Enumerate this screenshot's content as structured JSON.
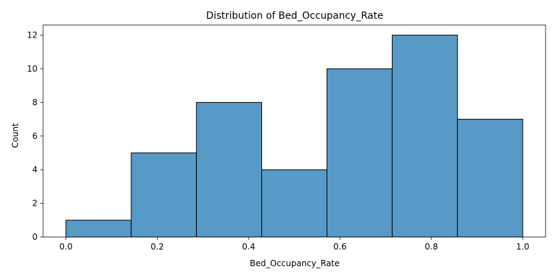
{
  "chart_data": {
    "type": "bar",
    "title": "Distribution of Bed_Occupancy_Rate",
    "xlabel": "Bed_Occupancy_Rate",
    "ylabel": "Count",
    "bin_edges": [
      0.0,
      0.142857,
      0.285714,
      0.428571,
      0.571429,
      0.714286,
      0.857143,
      1.0
    ],
    "values": [
      1,
      5,
      8,
      4,
      10,
      12,
      7
    ],
    "xlim": [
      -0.05,
      1.05
    ],
    "ylim": [
      0,
      12.6
    ],
    "x_ticks": [
      0.0,
      0.2,
      0.4,
      0.6,
      0.8,
      1.0
    ],
    "x_tick_labels": [
      "0.0",
      "0.2",
      "0.4",
      "0.6",
      "0.8",
      "1.0"
    ],
    "y_ticks": [
      0,
      2,
      4,
      6,
      8,
      10,
      12
    ],
    "y_tick_labels": [
      "0",
      "2",
      "4",
      "6",
      "8",
      "10",
      "12"
    ],
    "grid": false,
    "legend": "none",
    "colors": {
      "bar_fill": "#5799c7",
      "bar_edge": "#000000"
    }
  }
}
